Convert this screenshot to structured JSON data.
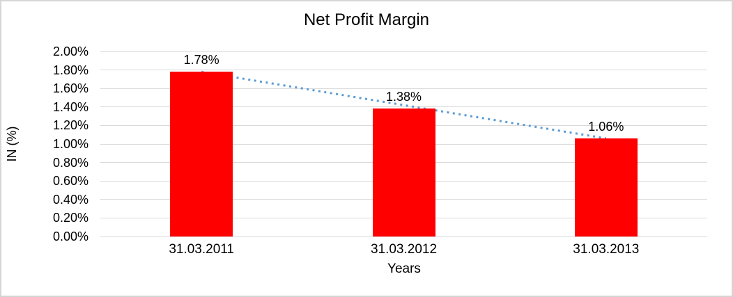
{
  "chart_data": {
    "type": "bar",
    "title": "Net Profit Margin",
    "xlabel": "Years",
    "ylabel": "IN (%)",
    "categories": [
      "31.03.2011",
      "31.03.2012",
      "31.03.2013"
    ],
    "values": [
      1.78,
      1.38,
      1.06
    ],
    "data_labels": [
      "1.78%",
      "1.38%",
      "1.06%"
    ],
    "ylim": [
      0,
      2
    ],
    "ytick_labels_top_to_bottom": [
      "2.00%",
      "1.80%",
      "1.60%",
      "1.40%",
      "1.20%",
      "1.00%",
      "0.80%",
      "0.60%",
      "0.40%",
      "0.20%",
      "0.00%"
    ],
    "grid": true,
    "legend": false,
    "trendline": {
      "type": "linear",
      "style": "dotted"
    },
    "colors": {
      "bar": "#FF0000",
      "trendline": "#5B9BD5",
      "gridline": "#D9D9D9",
      "text": "#000000",
      "chart_border": "#D6D6D6",
      "background": "#FFFFFF"
    }
  }
}
